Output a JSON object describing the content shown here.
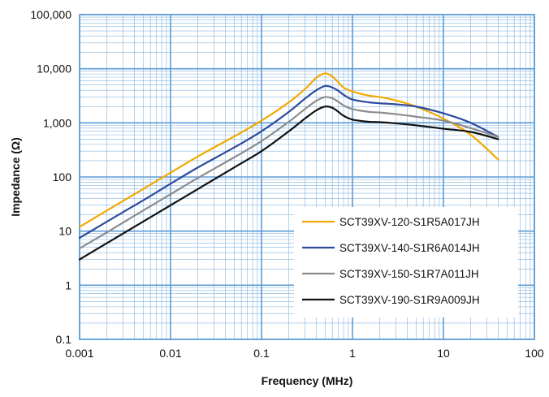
{
  "chart_data": {
    "type": "line",
    "xlabel": "Frequency (MHz)",
    "ylabel": "Impedance (Ω)",
    "xscale": "log",
    "yscale": "log",
    "xlim": [
      0.001,
      100
    ],
    "ylim": [
      0.1,
      100000
    ],
    "grid": true,
    "legend_position": "bottom-right",
    "x_tick_labels": [
      "0.001",
      "0.01",
      "0.1",
      "1",
      "10",
      "100"
    ],
    "y_tick_labels": [
      "0.1",
      "1",
      "10",
      "100",
      "1,000",
      "10,000",
      "100,000"
    ],
    "x_ticks": [
      0.001,
      0.01,
      0.1,
      1,
      10,
      100
    ],
    "y_ticks": [
      0.1,
      1,
      10,
      100,
      1000,
      10000,
      100000
    ],
    "colors": {
      "grid": "#5b9bd5",
      "background": "#ffffff"
    },
    "series": [
      {
        "name": "SCT39XV-120-S1R5A017JH",
        "color": "#f2a900",
        "x": [
          0.001,
          0.002,
          0.005,
          0.01,
          0.02,
          0.05,
          0.1,
          0.2,
          0.3,
          0.4,
          0.5,
          0.6,
          0.7,
          0.8,
          1,
          1.5,
          2,
          3,
          5,
          10,
          20,
          40
        ],
        "y": [
          12,
          24,
          60,
          120,
          240,
          560,
          1100,
          2400,
          4200,
          6800,
          8200,
          7200,
          5600,
          4500,
          3800,
          3200,
          3000,
          2600,
          2000,
          1200,
          600,
          210
        ]
      },
      {
        "name": "SCT39XV-140-S1R6A014JH",
        "color": "#2e4b9e",
        "x": [
          0.001,
          0.002,
          0.005,
          0.01,
          0.02,
          0.05,
          0.1,
          0.2,
          0.3,
          0.4,
          0.5,
          0.6,
          0.7,
          0.8,
          1,
          1.5,
          2,
          3,
          5,
          10,
          20,
          40
        ],
        "y": [
          7.5,
          15,
          37,
          75,
          150,
          350,
          700,
          1600,
          2800,
          4000,
          4800,
          4500,
          3900,
          3300,
          2700,
          2400,
          2300,
          2200,
          2000,
          1500,
          1000,
          550
        ]
      },
      {
        "name": "SCT39XV-150-S1R7A011JH",
        "color": "#8c8c8c",
        "x": [
          0.001,
          0.002,
          0.005,
          0.01,
          0.02,
          0.05,
          0.1,
          0.2,
          0.3,
          0.4,
          0.5,
          0.6,
          0.7,
          0.8,
          1,
          1.5,
          2,
          3,
          5,
          10,
          20,
          40
        ],
        "y": [
          4.8,
          9.5,
          24,
          48,
          96,
          230,
          460,
          1050,
          1800,
          2550,
          3000,
          2850,
          2450,
          2100,
          1800,
          1600,
          1550,
          1450,
          1300,
          1100,
          800,
          550
        ]
      },
      {
        "name": "SCT39XV-190-S1R9A009JH",
        "color": "#111111",
        "x": [
          0.001,
          0.002,
          0.005,
          0.01,
          0.02,
          0.05,
          0.1,
          0.2,
          0.3,
          0.4,
          0.5,
          0.6,
          0.7,
          0.8,
          1,
          1.5,
          2,
          3,
          5,
          10,
          20,
          40
        ],
        "y": [
          3,
          6,
          15,
          30,
          60,
          150,
          300,
          700,
          1200,
          1700,
          2000,
          1900,
          1600,
          1350,
          1150,
          1050,
          1030,
          980,
          900,
          780,
          680,
          500
        ]
      }
    ]
  }
}
